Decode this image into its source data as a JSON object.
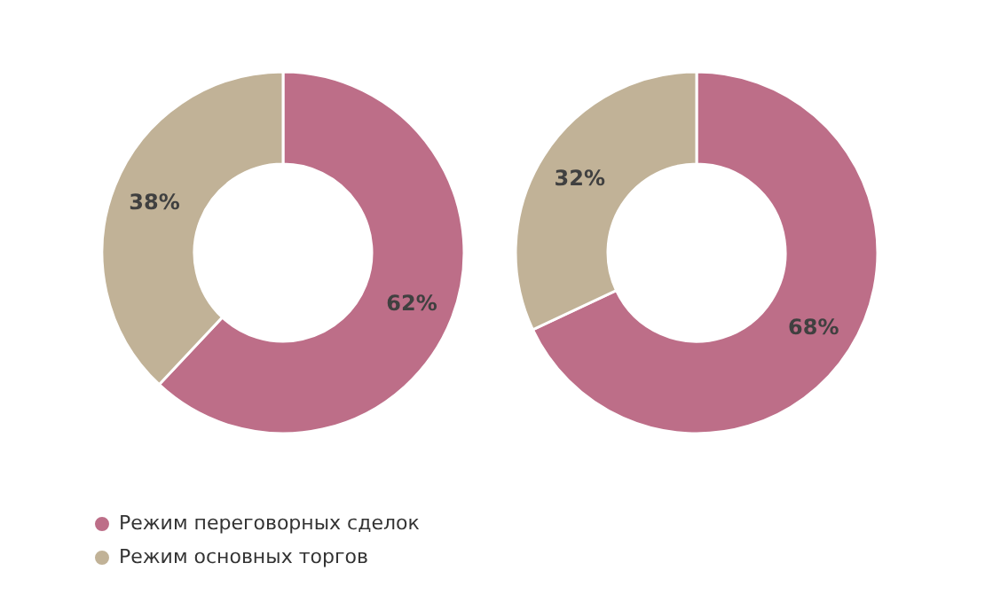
{
  "chart_data": [
    {
      "type": "donut",
      "categories": [
        "Режим переговорных сделок",
        "Режим основных торгов"
      ],
      "values": [
        62,
        38
      ],
      "colors": [
        "#bd6e88",
        "#c1b297"
      ],
      "value_labels": [
        "62%",
        "38%"
      ],
      "legend": "bottom"
    },
    {
      "type": "donut",
      "categories": [
        null,
        null
      ],
      "values": [
        68,
        32
      ],
      "colors": [
        "#bd6e88",
        "#c1b297"
      ],
      "value_labels": [
        "68%",
        "32%"
      ]
    }
  ]
}
